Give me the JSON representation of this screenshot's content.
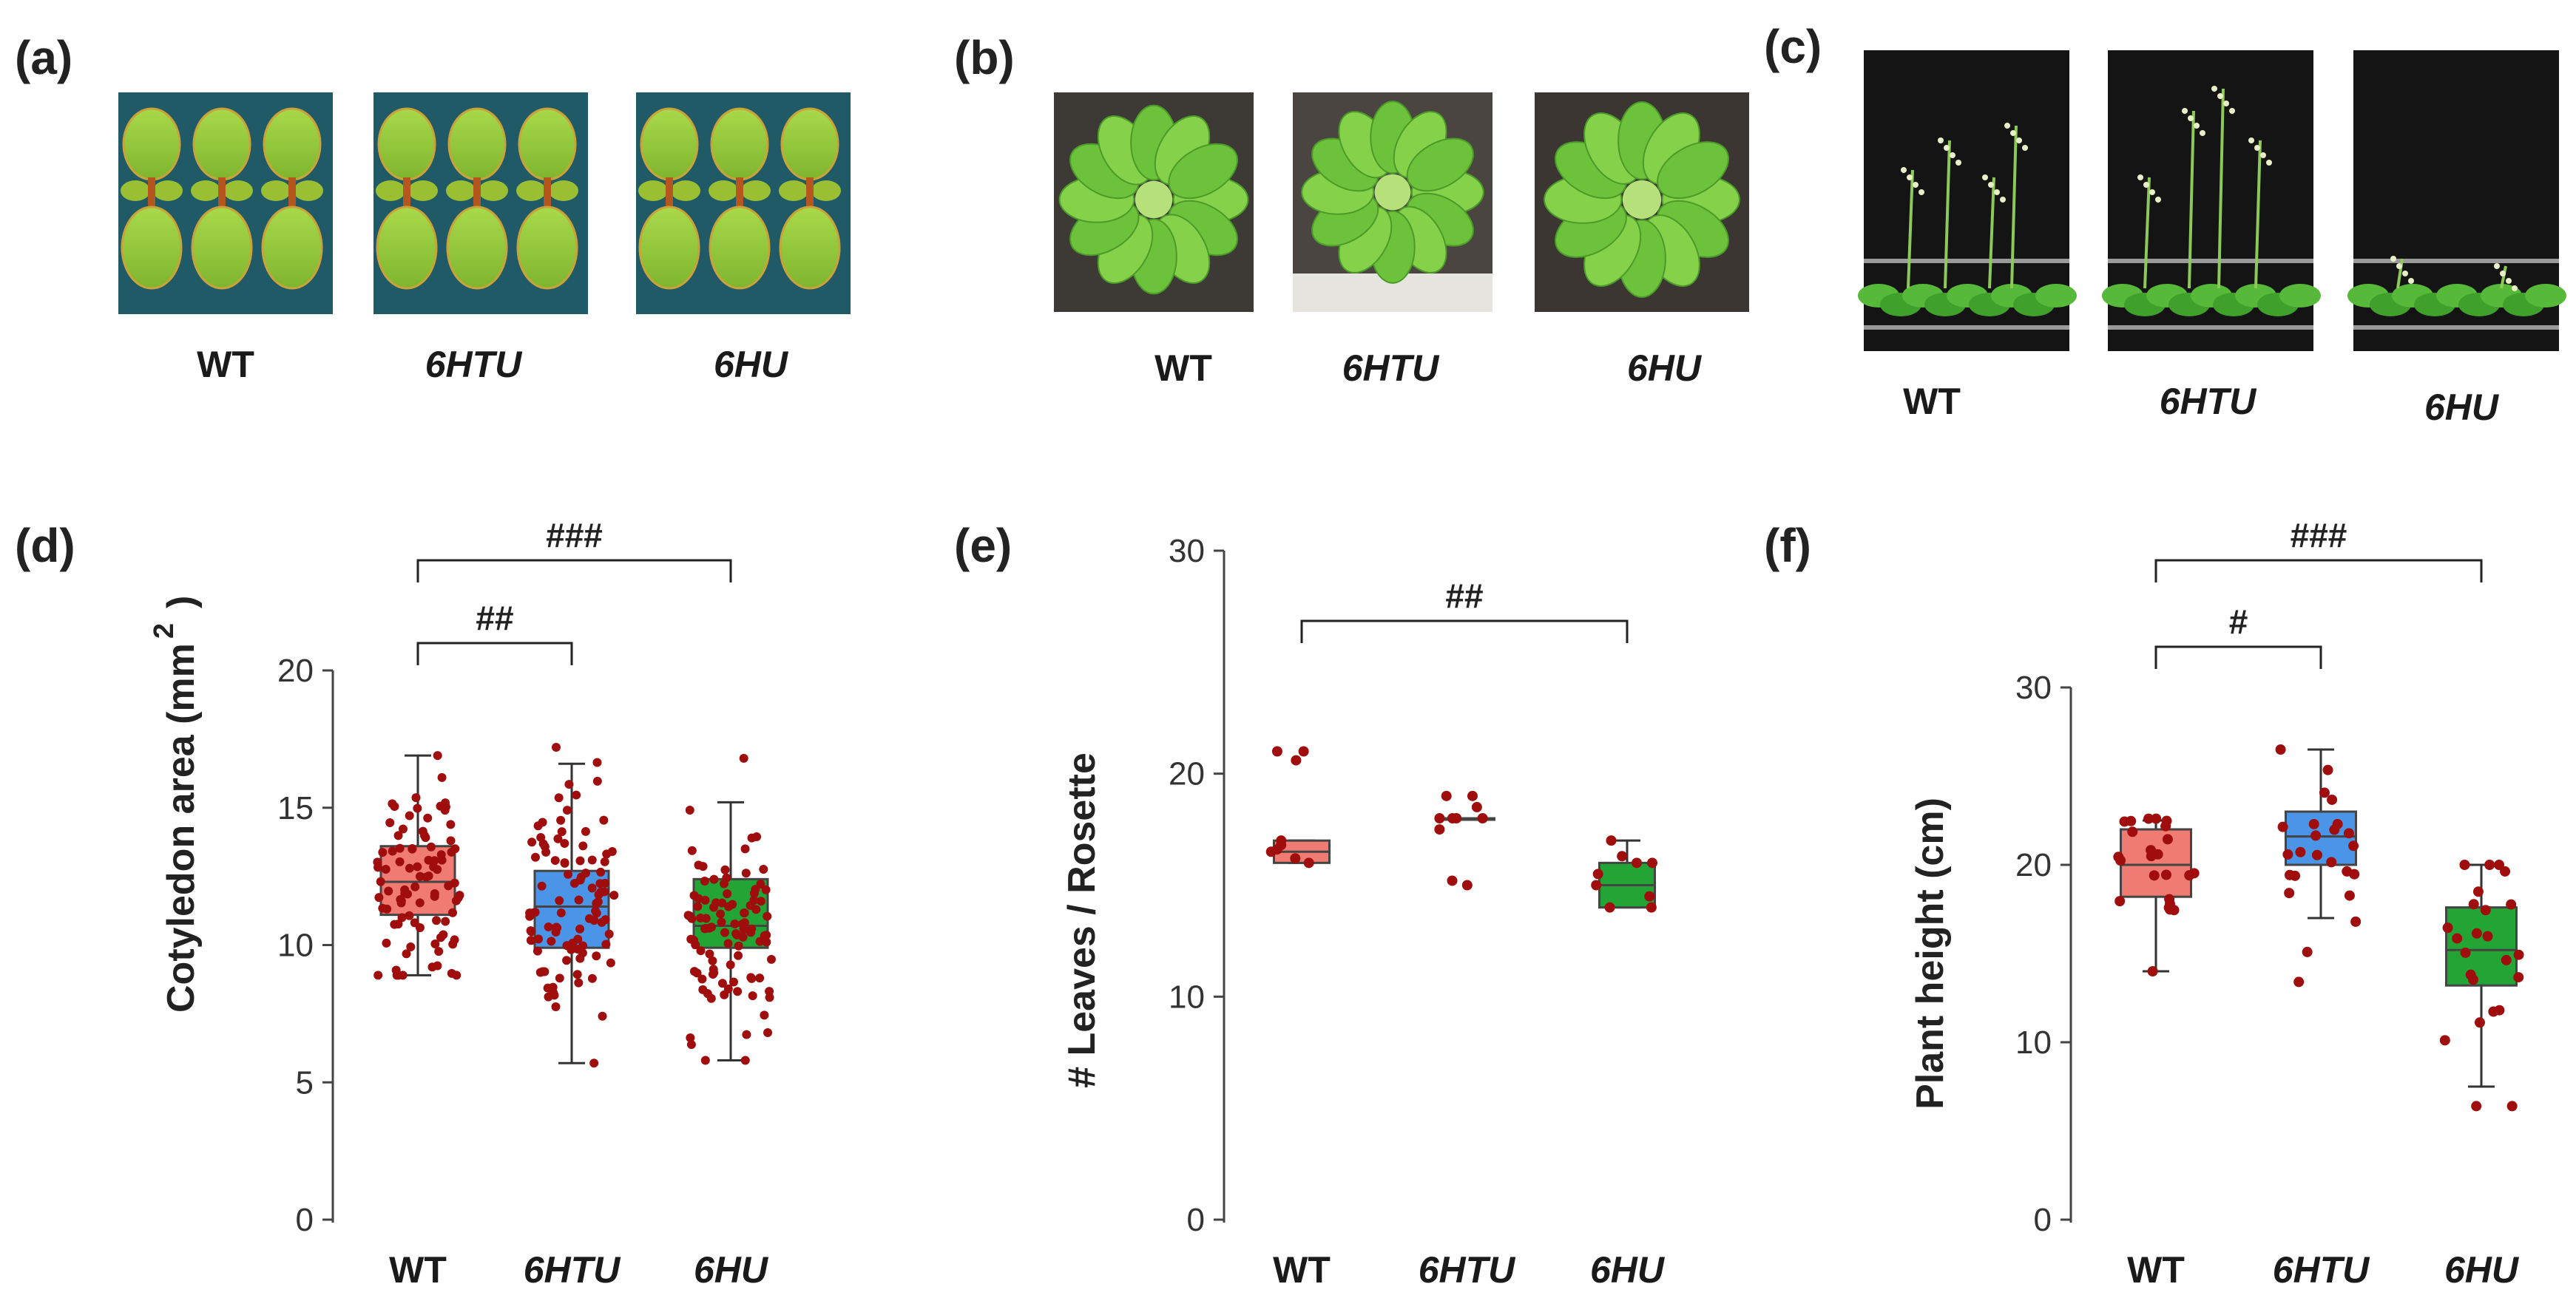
{
  "figure": {
    "photo_panels": [
      {
        "letter": "(a)",
        "labels": [
          "WT",
          "6HTU",
          "6HU"
        ]
      },
      {
        "letter": "(b)",
        "labels": [
          "WT",
          "6HTU",
          "6HU"
        ]
      },
      {
        "letter": "(c)",
        "labels": [
          "WT",
          "6HTU",
          "6HU"
        ]
      }
    ]
  },
  "colors": {
    "WT": "#f07b72",
    "6HTU": "#4b95e8",
    "6HU": "#22a535",
    "points": "#a00d0d"
  },
  "chart_data": [
    {
      "panel": "(d)",
      "type": "box",
      "title": "",
      "ylabel": "Cotyledon area (mm 2 )",
      "ylabel_main": "Cotyledon area (mm",
      "ylabel_sup": "2",
      "ylabel_close": ")",
      "ylim": [
        0,
        20
      ],
      "yticks": [
        0,
        5,
        10,
        15,
        20
      ],
      "categories": [
        "WT",
        "6HTU",
        "6HU"
      ],
      "series": [
        {
          "name": "WT",
          "min": 8.9,
          "q1": 11.1,
          "median": 12.3,
          "q3": 13.6,
          "max": 16.9,
          "n_points": 90,
          "point_range": [
            8.9,
            16.9
          ]
        },
        {
          "name": "6HTU",
          "min": 5.7,
          "q1": 9.9,
          "median": 11.4,
          "q3": 12.7,
          "max": 16.6,
          "n_points": 100,
          "point_range": [
            5.7,
            17.2
          ]
        },
        {
          "name": "6HU",
          "min": 5.8,
          "q1": 9.9,
          "median": 10.7,
          "q3": 12.4,
          "max": 15.2,
          "n_points": 100,
          "point_range": [
            5.8,
            16.8
          ]
        }
      ],
      "significance": [
        {
          "from": "WT",
          "to": "6HTU",
          "label": "##"
        },
        {
          "from": "WT",
          "to": "6HU",
          "label": "###"
        }
      ]
    },
    {
      "panel": "(e)",
      "type": "box",
      "title": "",
      "ylabel": "# Leaves / Rosette",
      "ylim": [
        0,
        30
      ],
      "yticks": [
        0,
        10,
        20,
        30
      ],
      "categories": [
        "WT",
        "6HTU",
        "6HU"
      ],
      "series": [
        {
          "name": "WT",
          "min": 16,
          "q1": 16,
          "median": 16.5,
          "q3": 17,
          "max": 17,
          "points": [
            16,
            16.2,
            16.5,
            16.6,
            17,
            16.8,
            21,
            21,
            20.6
          ]
        },
        {
          "name": "6HTU",
          "min": 18,
          "q1": 18,
          "median": 18,
          "q3": 18,
          "max": 18,
          "points": [
            18,
            18,
            18,
            18.5,
            19,
            19,
            17.5,
            15.2,
            15,
            18
          ]
        },
        {
          "name": "6HU",
          "min": 14,
          "q1": 14,
          "median": 15,
          "q3": 16,
          "max": 17,
          "points": [
            14,
            14,
            14.5,
            15,
            15.5,
            16,
            16,
            16.3,
            17
          ]
        }
      ],
      "significance": [
        {
          "from": "WT",
          "to": "6HU",
          "label": "##"
        }
      ]
    },
    {
      "panel": "(f)",
      "type": "box",
      "title": "",
      "ylabel": "Plant height (cm)",
      "ylim": [
        0,
        30
      ],
      "yticks": [
        0,
        10,
        20,
        30
      ],
      "categories": [
        "WT",
        "6HTU",
        "6HU"
      ],
      "series": [
        {
          "name": "WT",
          "min": 14,
          "q1": 18.2,
          "median": 20,
          "q3": 22,
          "max": 22.5,
          "n_points": 24,
          "point_range": [
            14,
            22.6
          ]
        },
        {
          "name": "6HTU",
          "min": 17,
          "q1": 20,
          "median": 21.6,
          "q3": 23,
          "max": 26.5,
          "n_points": 24,
          "point_range": [
            13.4,
            26.5
          ]
        },
        {
          "name": "6HU",
          "min": 7.5,
          "q1": 13.2,
          "median": 15.2,
          "q3": 17.6,
          "max": 20,
          "n_points": 24,
          "point_range": [
            6.4,
            20
          ]
        }
      ],
      "significance": [
        {
          "from": "WT",
          "to": "6HTU",
          "label": "#"
        },
        {
          "from": "WT",
          "to": "6HU",
          "label": "###"
        }
      ]
    }
  ]
}
